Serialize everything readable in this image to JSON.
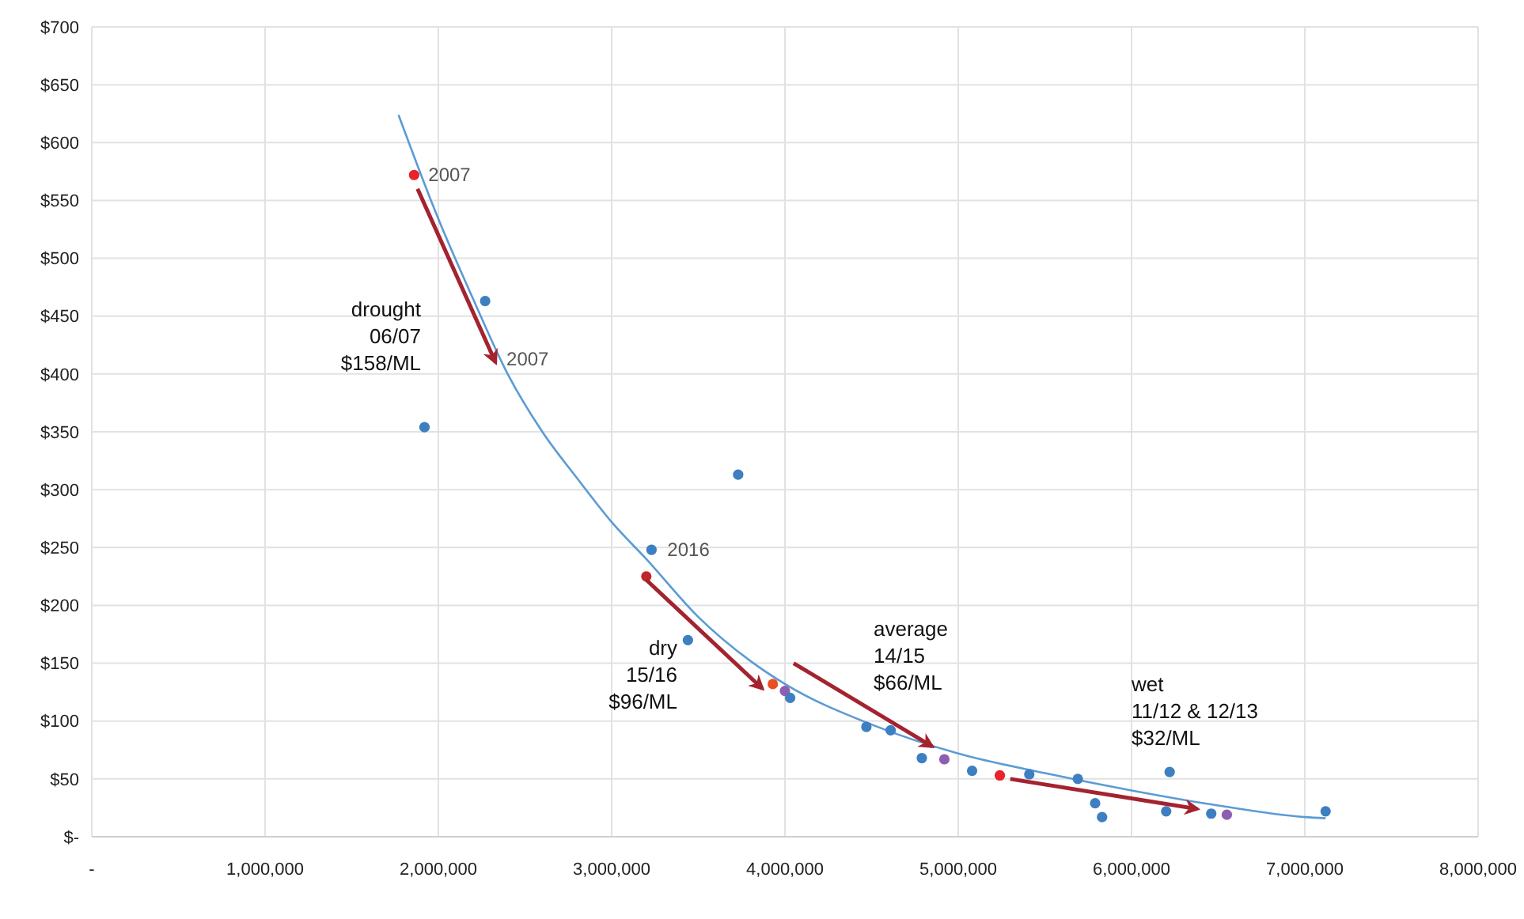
{
  "chart_data": {
    "type": "scatter",
    "xlim": [
      0,
      8000000
    ],
    "xticks": [
      {
        "value": 0,
        "label": "-"
      },
      {
        "value": 1000000,
        "label": "1,000,000"
      },
      {
        "value": 2000000,
        "label": "2,000,000"
      },
      {
        "value": 3000000,
        "label": "3,000,000"
      },
      {
        "value": 4000000,
        "label": "4,000,000"
      },
      {
        "value": 5000000,
        "label": "5,000,000"
      },
      {
        "value": 6000000,
        "label": "6,000,000"
      },
      {
        "value": 7000000,
        "label": "7,000,000"
      },
      {
        "value": 8000000,
        "label": "8,000,000"
      }
    ],
    "ylim": [
      0,
      700
    ],
    "yticks": [
      {
        "value": 0,
        "label": "$-"
      },
      {
        "value": 50,
        "label": "$50"
      },
      {
        "value": 100,
        "label": "$100"
      },
      {
        "value": 150,
        "label": "$150"
      },
      {
        "value": 200,
        "label": "$200"
      },
      {
        "value": 250,
        "label": "$250"
      },
      {
        "value": 300,
        "label": "$300"
      },
      {
        "value": 350,
        "label": "$350"
      },
      {
        "value": 400,
        "label": "$400"
      },
      {
        "value": 450,
        "label": "$450"
      },
      {
        "value": 500,
        "label": "$500"
      },
      {
        "value": 550,
        "label": "$550"
      },
      {
        "value": 600,
        "label": "$600"
      },
      {
        "value": 650,
        "label": "$650"
      },
      {
        "value": 700,
        "label": "$700"
      }
    ],
    "grid": true,
    "series": [
      {
        "type": "line",
        "color": "#5b9bd5",
        "x": [
          1770000,
          2000000,
          2200000,
          2400000,
          2600000,
          2800000,
          3000000,
          3200000,
          3500000,
          3800000,
          4000000,
          4500000,
          5000000,
          5500000,
          6000000,
          6500000,
          7000000,
          7120000
        ],
        "values": [
          624,
          534,
          465,
          400,
          350,
          310,
          272,
          240,
          190,
          152,
          132,
          97,
          72,
          55,
          40,
          27,
          17,
          16
        ]
      },
      {
        "marker": "circle",
        "x": [
          1860000,
          2270000,
          1920000,
          3730000,
          3230000,
          3200000,
          3440000,
          3930000,
          4000000,
          4030000,
          4470000,
          4610000,
          4790000,
          4920000,
          5080000,
          5240000,
          5410000,
          5690000,
          5790000,
          5830000,
          6220000,
          6200000,
          6460000,
          6550000,
          7120000
        ],
        "values": [
          572,
          463,
          354,
          313,
          248,
          225,
          170,
          132,
          126,
          120,
          95,
          92,
          68,
          67,
          57,
          53,
          54,
          50,
          29,
          17,
          56,
          22,
          20,
          19,
          22
        ],
        "colors": [
          "#e8232a",
          "#3d7fc0",
          "#3d7fc0",
          "#3d7fc0",
          "#3d7fc0",
          "#c0272d",
          "#3d7fc0",
          "#e8501f",
          "#8e5fb0",
          "#3d7fc0",
          "#3d7fc0",
          "#3d7fc0",
          "#3d7fc0",
          "#8e5fb0",
          "#3d7fc0",
          "#e8232a",
          "#3d7fc0",
          "#3d7fc0",
          "#3d7fc0",
          "#3d7fc0",
          "#3d7fc0",
          "#3d7fc0",
          "#3d7fc0",
          "#8e5fb0",
          "#3d7fc0"
        ]
      }
    ],
    "annotations": [
      {
        "text": "2007",
        "x": 1860000,
        "y": 572
      },
      {
        "text": "2007",
        "x": 2320000,
        "y": 413
      },
      {
        "text": "2016",
        "x": 3230000,
        "y": 248
      },
      "drought\n06/07\n$158/ML",
      "dry\n15/16\n$96/ML",
      "average\n14/15\n$66/ML",
      "wet\n11/12 & 12/13\n$32/ML"
    ]
  }
}
